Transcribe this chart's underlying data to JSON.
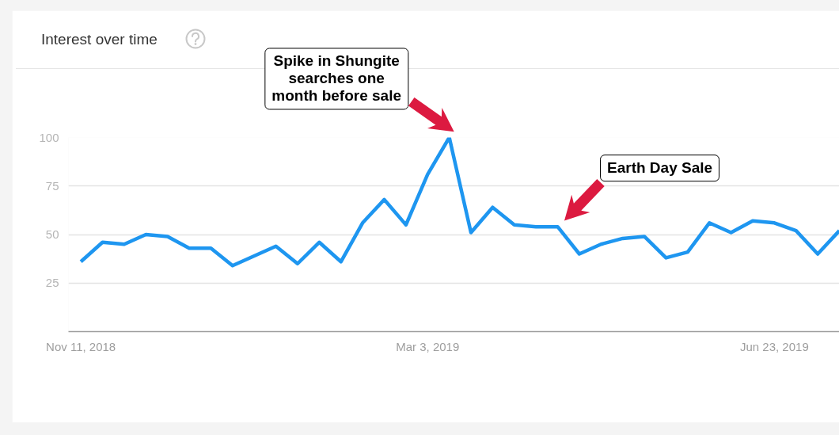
{
  "chart_data": {
    "type": "line",
    "title": "Interest over time",
    "x": [
      "2018-11-11",
      "2018-11-18",
      "2018-11-25",
      "2018-12-02",
      "2018-12-09",
      "2018-12-16",
      "2018-12-23",
      "2018-12-30",
      "2019-01-06",
      "2019-01-13",
      "2019-01-20",
      "2019-01-27",
      "2019-02-03",
      "2019-02-10",
      "2019-02-17",
      "2019-02-24",
      "2019-03-03",
      "2019-03-10",
      "2019-03-17",
      "2019-03-24",
      "2019-03-31",
      "2019-04-07",
      "2019-04-14",
      "2019-04-21",
      "2019-04-28",
      "2019-05-05",
      "2019-05-12",
      "2019-05-19",
      "2019-05-26",
      "2019-06-02",
      "2019-06-09",
      "2019-06-16",
      "2019-06-23",
      "2019-06-30",
      "2019-07-07",
      "2019-07-14"
    ],
    "series": [
      {
        "color": "#1e96f0",
        "values": [
          36,
          46,
          45,
          50,
          49,
          43,
          43,
          34,
          39,
          44,
          35,
          46,
          36,
          56,
          68,
          55,
          81,
          100,
          51,
          64,
          55,
          54,
          54,
          40,
          45,
          48,
          49,
          38,
          41,
          56,
          51,
          57,
          56,
          52,
          40,
          52
        ]
      }
    ],
    "xlim": [
      "2018-11-07",
      "2019-07-14"
    ],
    "xticks": [
      {
        "value": "2018-11-11",
        "label": "Nov 11, 2018"
      },
      {
        "value": "2019-03-03",
        "label": "Mar 3, 2019"
      },
      {
        "value": "2019-06-23",
        "label": "Jun 23, 2019"
      }
    ],
    "ylim": [
      0,
      100
    ],
    "yticks": [
      25,
      50,
      75,
      100
    ],
    "grid": "y",
    "line_style": "solid",
    "annotations": [
      "Spike in Shungite searches one month before sale",
      "Earth Day Sale"
    ]
  }
}
